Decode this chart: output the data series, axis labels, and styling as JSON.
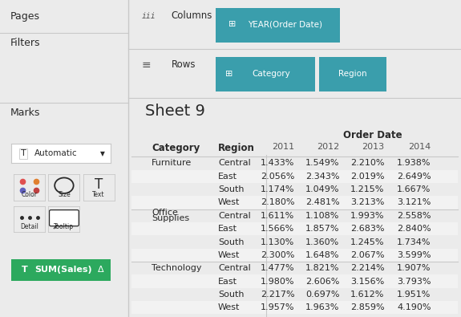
{
  "title": "Sheet 9",
  "col_header": "Order Date",
  "years": [
    "2011",
    "2012",
    "2013",
    "2014"
  ],
  "categories": [
    {
      "name": "Furniture",
      "regions": [
        {
          "name": "Central",
          "values": [
            "1.433%",
            "1.549%",
            "2.210%",
            "1.938%"
          ]
        },
        {
          "name": "East",
          "values": [
            "2.056%",
            "2.343%",
            "2.019%",
            "2.649%"
          ]
        },
        {
          "name": "South",
          "values": [
            "1.174%",
            "1.049%",
            "1.215%",
            "1.667%"
          ]
        },
        {
          "name": "West",
          "values": [
            "2.180%",
            "2.481%",
            "3.213%",
            "3.121%"
          ]
        }
      ]
    },
    {
      "name": "Office\nSupplies",
      "regions": [
        {
          "name": "Central",
          "values": [
            "1.611%",
            "1.108%",
            "1.993%",
            "2.558%"
          ]
        },
        {
          "name": "East",
          "values": [
            "1.566%",
            "1.857%",
            "2.683%",
            "2.840%"
          ]
        },
        {
          "name": "South",
          "values": [
            "1.130%",
            "1.360%",
            "1.245%",
            "1.734%"
          ]
        },
        {
          "name": "West",
          "values": [
            "2.300%",
            "1.648%",
            "2.067%",
            "3.599%"
          ]
        }
      ]
    },
    {
      "name": "Technology",
      "regions": [
        {
          "name": "Central",
          "values": [
            "1.477%",
            "1.821%",
            "2.214%",
            "1.907%"
          ]
        },
        {
          "name": "East",
          "values": [
            "1.980%",
            "2.606%",
            "3.156%",
            "3.793%"
          ]
        },
        {
          "name": "South",
          "values": [
            "2.217%",
            "0.697%",
            "1.612%",
            "1.951%"
          ]
        },
        {
          "name": "West",
          "values": [
            "1.957%",
            "1.963%",
            "2.859%",
            "4.190%"
          ]
        }
      ]
    }
  ],
  "left_panel_bg": "#ebebeb",
  "main_bg": "#ffffff",
  "teal": "#3a9eac",
  "green": "#2ca95e",
  "header_bar_bg": "#e4e4e4",
  "row_alt_bg": "#f2f2f2",
  "border_color": "#c8c8c8",
  "text_dark": "#2a2a2a",
  "text_medium": "#555555",
  "pages_text": "Pages",
  "filters_text": "Filters",
  "marks_text": "Marks",
  "columns_label": "Columns",
  "rows_label": "Rows",
  "year_order_date": "YEAR(Order Date)",
  "category_pill": "Category",
  "region_pill": "Region",
  "sum_sales": "SUM(Sales)",
  "automatic_text": "Automatic"
}
